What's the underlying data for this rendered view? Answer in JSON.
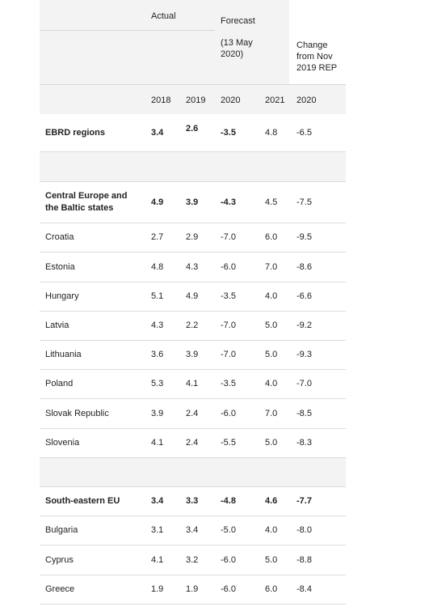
{
  "header": {
    "actual": "Actual",
    "forecast": "Forecast",
    "forecast_date": "(13 May 2020)",
    "change": "Change from Nov 2019 REP",
    "years": [
      "2018",
      "2019",
      "2020",
      "2021",
      "2020"
    ]
  },
  "rows": [
    {
      "name": "EBRD regions",
      "values": [
        "3.4",
        "2.6",
        "-3.5",
        "4.8",
        "-6.5"
      ]
    },
    {
      "name": "",
      "values": [
        "",
        "",
        "",
        "",
        ""
      ]
    },
    {
      "name": "Central Europe and the Baltic states",
      "values": [
        "4.9",
        "3.9",
        "-4.3",
        "4.5",
        "-7.5"
      ]
    },
    {
      "name": "Croatia",
      "values": [
        "2.7",
        "2.9",
        "-7.0",
        "6.0",
        "-9.5"
      ]
    },
    {
      "name": "Estonia",
      "values": [
        "4.8",
        "4.3",
        "-6.0",
        "7.0",
        "-8.6"
      ]
    },
    {
      "name": "Hungary",
      "values": [
        "5.1",
        "4.9",
        "-3.5",
        "4.0",
        "-6.6"
      ]
    },
    {
      "name": "Latvia",
      "values": [
        "4.3",
        "2.2",
        "-7.0",
        "5.0",
        "-9.2"
      ]
    },
    {
      "name": "Lithuania",
      "values": [
        "3.6",
        "3.9",
        "-7.0",
        "5.0",
        "-9.3"
      ]
    },
    {
      "name": "Poland",
      "values": [
        "5.3",
        "4.1",
        "-3.5",
        "4.0",
        "-7.0"
      ]
    },
    {
      "name": "Slovak Republic",
      "values": [
        "3.9",
        "2.4",
        "-6.0",
        "7.0",
        "-8.5"
      ]
    },
    {
      "name": "Slovenia",
      "values": [
        "4.1",
        "2.4",
        "-5.5",
        "5.0",
        "-8.3"
      ]
    },
    {
      "name": "",
      "values": [
        "",
        "",
        "",
        "",
        ""
      ]
    },
    {
      "name": "South-eastern EU",
      "values": [
        "3.4",
        "3.3",
        "-4.8",
        "4.6",
        "-7.7"
      ]
    },
    {
      "name": "Bulgaria",
      "values": [
        "3.1",
        "3.4",
        "-5.0",
        "4.0",
        "-8.0"
      ]
    },
    {
      "name": "Cyprus",
      "values": [
        "4.1",
        "3.2",
        "-6.0",
        "5.0",
        "-8.8"
      ]
    },
    {
      "name": "Greece",
      "values": [
        "1.9",
        "1.9",
        "-6.0",
        "6.0",
        "-8.4"
      ]
    }
  ]
}
